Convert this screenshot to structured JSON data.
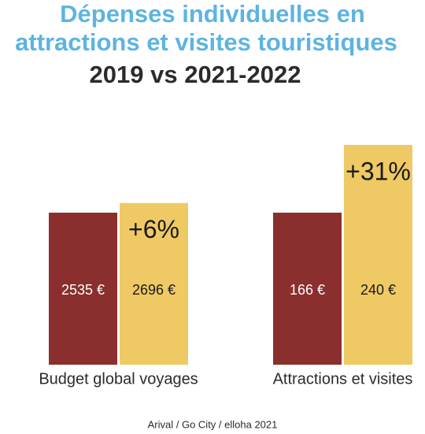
{
  "chart_data": {
    "type": "bar",
    "title": [
      "Dépenses individuelles en",
      "attractions et visites touristiques"
    ],
    "subtitle": "2019 vs 2021-2022",
    "categories": [
      "Budget global voyages",
      "Attractions et visites"
    ],
    "series": [
      {
        "color": "#8a2e2e",
        "values": [
          2535,
          166
        ],
        "value_labels": [
          "2535 €",
          "166 €"
        ]
      },
      {
        "color": "#efc964",
        "values": [
          2696,
          240
        ],
        "value_labels": [
          "2696 €",
          "240 €"
        ]
      }
    ],
    "annotations": [
      "+6%",
      "+31%"
    ],
    "source": "Arival / Go City / elloha 2021"
  }
}
